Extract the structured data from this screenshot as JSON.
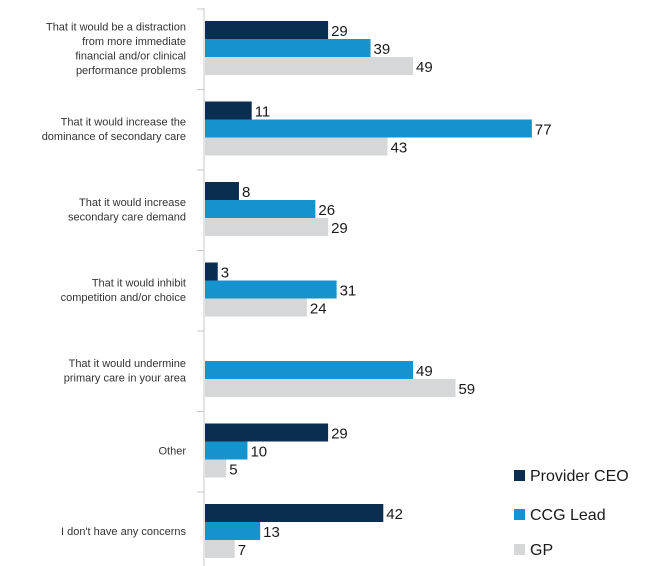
{
  "chart_data": {
    "type": "bar",
    "orientation": "horizontal",
    "categories": [
      [
        "That it would be a distraction",
        "from more immediate",
        "financial and/or clinical",
        "performance problems"
      ],
      [
        "That it would increase the",
        "dominance of secondary care"
      ],
      [
        "That it would increase",
        "secondary care demand"
      ],
      [
        "That it would inhibit",
        "competition and/or choice"
      ],
      [
        "That it would undermine",
        "primary care in your area"
      ],
      [
        "Other"
      ],
      [
        "I don't have any concerns"
      ]
    ],
    "series": [
      {
        "name": "Provider CEO",
        "color": "#0b2d4f",
        "values": [
          29,
          11,
          8,
          3,
          null,
          29,
          42
        ]
      },
      {
        "name": "CCG Lead",
        "color": "#1493cf",
        "values": [
          39,
          77,
          26,
          31,
          49,
          10,
          13
        ]
      },
      {
        "name": "GP",
        "color": "#d6d7d9",
        "values": [
          49,
          43,
          29,
          24,
          59,
          5,
          7
        ]
      }
    ],
    "xlim": [
      0,
      80
    ],
    "grid": false,
    "legend_position": "bottom-right"
  }
}
